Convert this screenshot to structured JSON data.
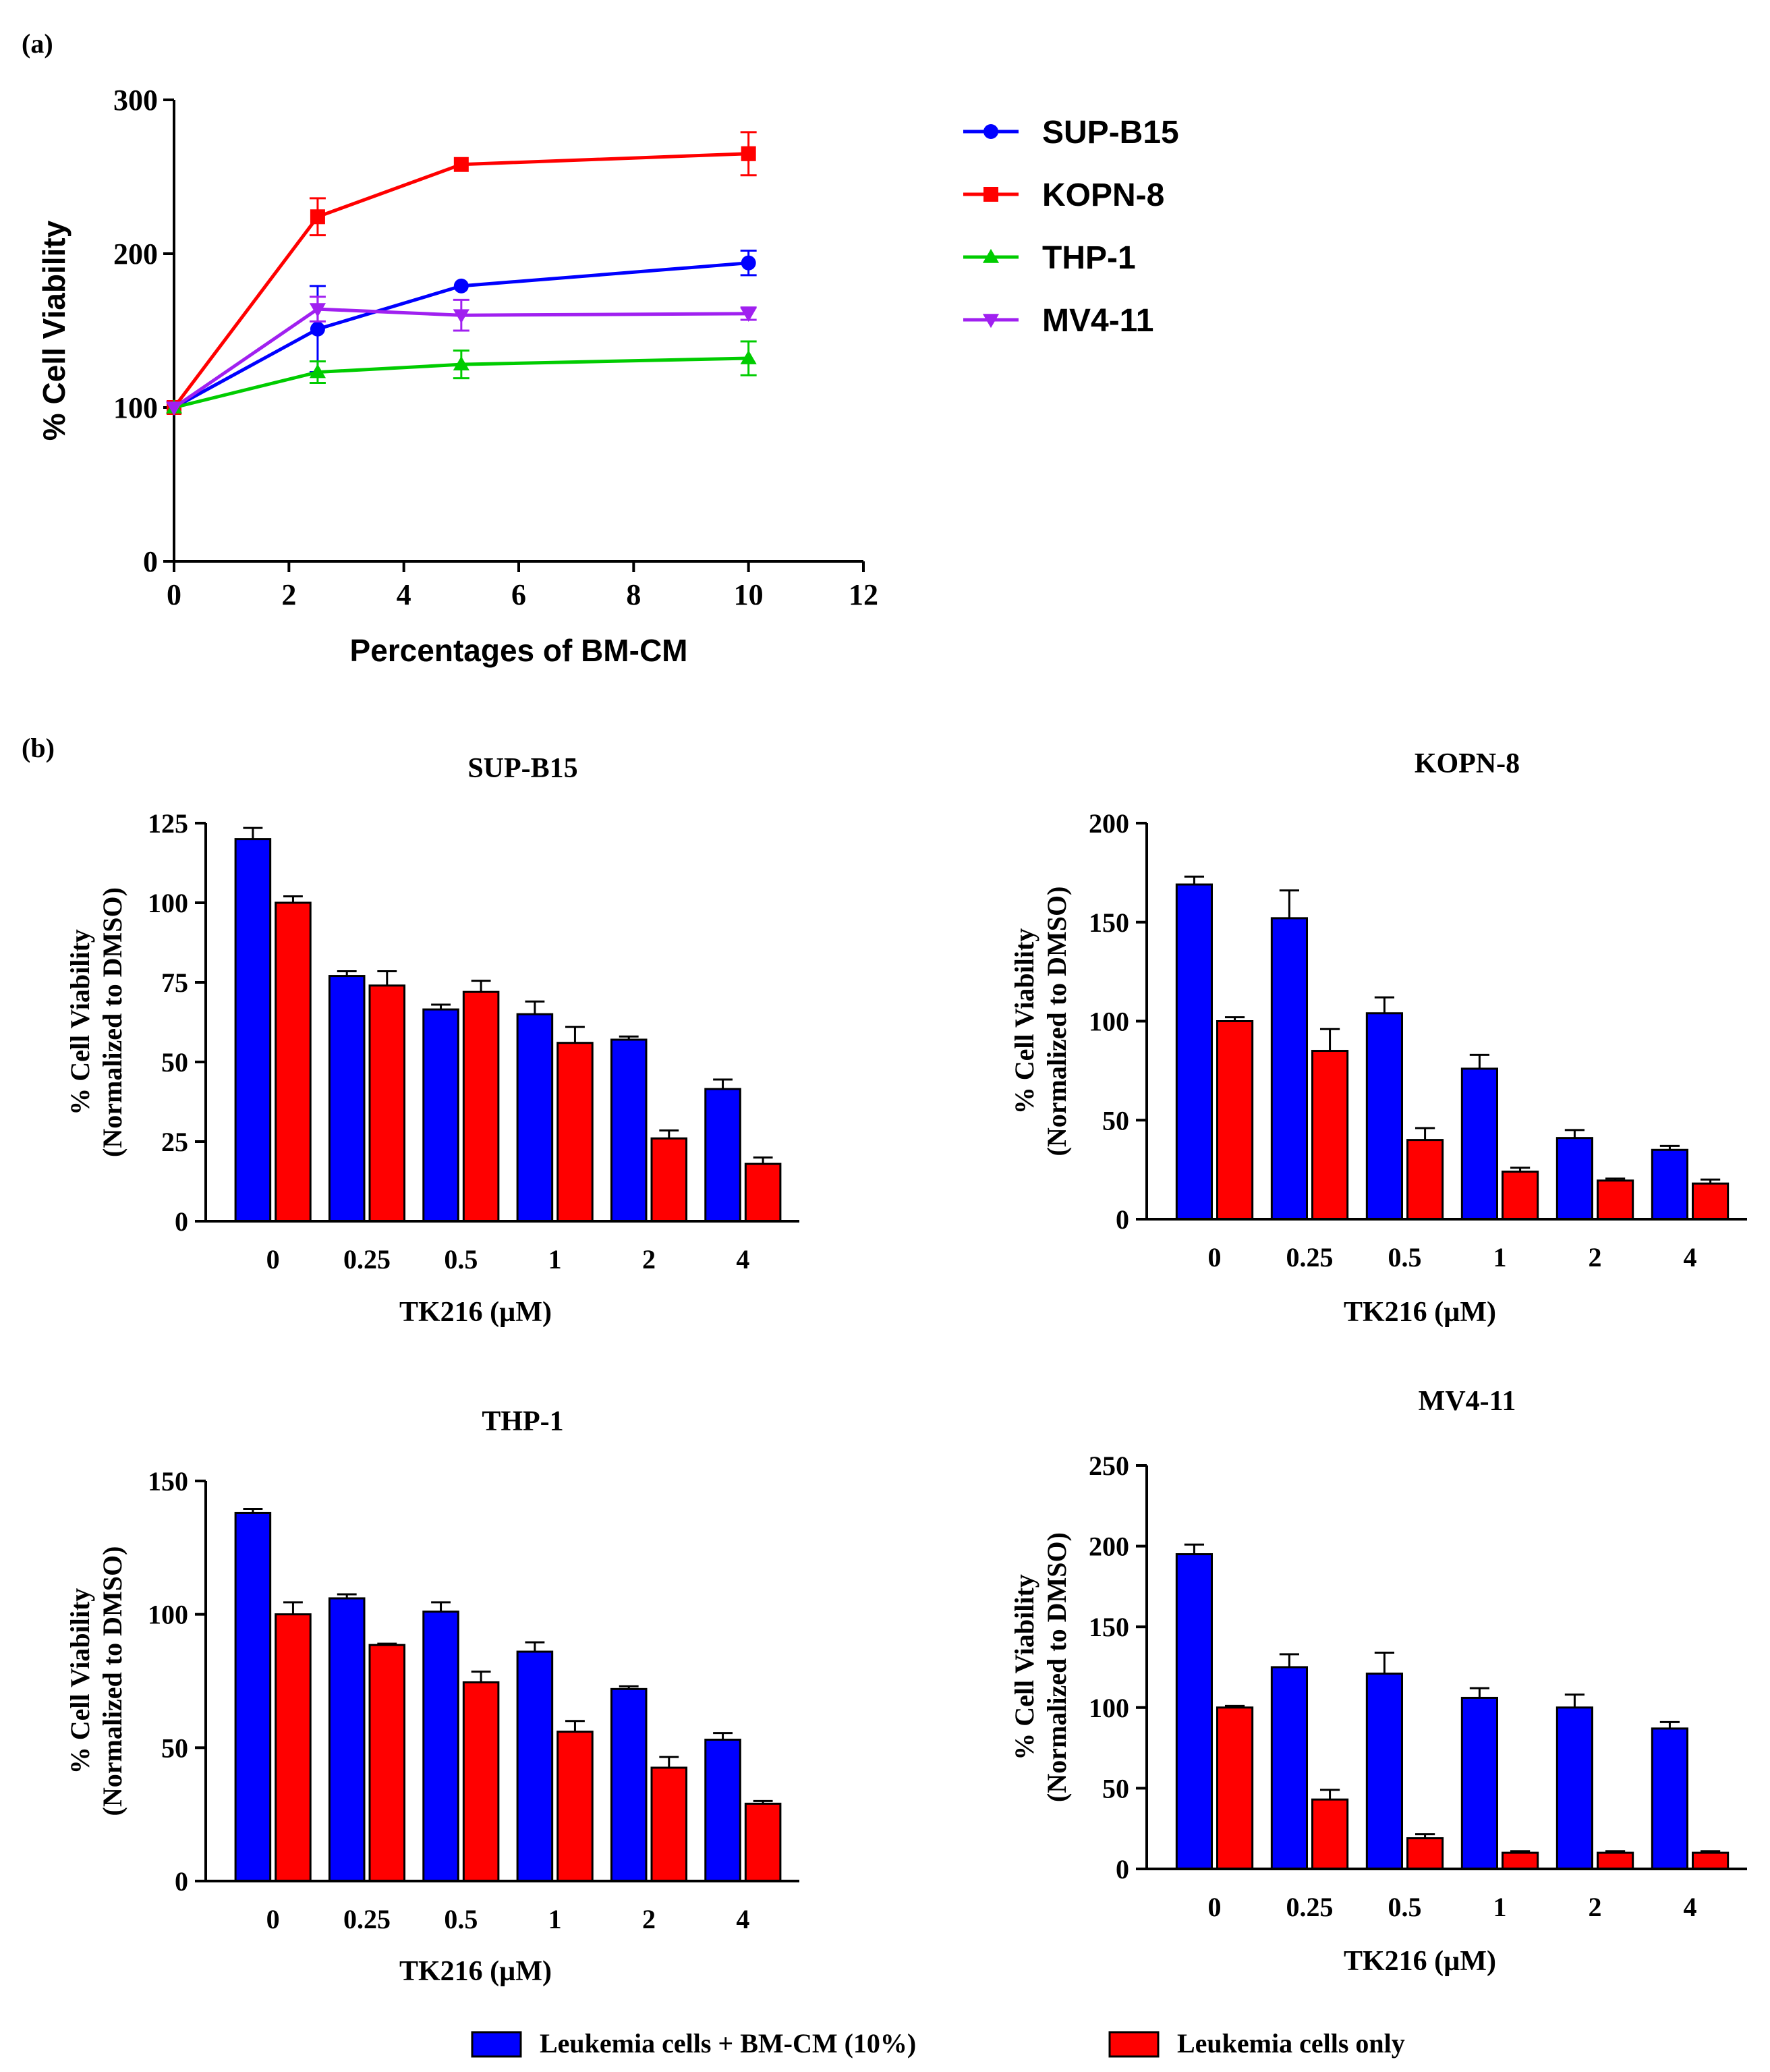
{
  "colors": {
    "blue": "#0000ff",
    "red": "#ff0000",
    "green": "#00cc00",
    "purple": "#a020f0",
    "axis": "#000000"
  },
  "panel_a": {
    "label": "(a)"
  },
  "panel_b": {
    "label": "(b)"
  },
  "legend_b": {
    "items": [
      {
        "name": "Leukemia cells + BM-CM (10%)",
        "color": "#0000ff"
      },
      {
        "name": "Leukemia cells only",
        "color": "#ff0000"
      }
    ]
  },
  "chart_data": [
    {
      "id": "a",
      "type": "line",
      "title": "",
      "xlabel": "Percentages of BM-CM",
      "ylabel": "% Cell Viability",
      "xlim": [
        0,
        12
      ],
      "ylim": [
        0,
        300
      ],
      "xticks": [
        0,
        2,
        4,
        6,
        8,
        10,
        12
      ],
      "yticks": [
        0,
        100,
        200,
        300
      ],
      "x": [
        0,
        2.5,
        5,
        10
      ],
      "legend_position": "right",
      "series": [
        {
          "name": "SUP-B15",
          "color": "#0000ff",
          "marker": "circle",
          "values": [
            100,
            151,
            179,
            194
          ],
          "errors": [
            0,
            28,
            0,
            8
          ]
        },
        {
          "name": "KOPN-8",
          "color": "#ff0000",
          "marker": "square",
          "values": [
            100,
            224,
            258,
            265
          ],
          "errors": [
            0,
            12,
            0,
            14
          ]
        },
        {
          "name": "THP-1",
          "color": "#00cc00",
          "marker": "triangle-up",
          "values": [
            100,
            123,
            128,
            132
          ],
          "errors": [
            0,
            7,
            9,
            11
          ]
        },
        {
          "name": "MV4-11",
          "color": "#a020f0",
          "marker": "triangle-down",
          "values": [
            100,
            164,
            160,
            161
          ],
          "errors": [
            0,
            8,
            10,
            4
          ]
        }
      ]
    },
    {
      "id": "b1",
      "type": "bar",
      "title": "SUP-B15",
      "xlabel": "TK216 (µM)",
      "ylabel": [
        "% Cell Viability",
        "(Normalized to DMSO)"
      ],
      "ylim": [
        0,
        125
      ],
      "yticks": [
        0,
        25,
        50,
        75,
        100,
        125
      ],
      "categories": [
        "0",
        "0.25",
        "0.5",
        "1",
        "2",
        "4"
      ],
      "series": [
        {
          "name": "Leukemia cells + BM-CM (10%)",
          "color": "#0000ff",
          "values": [
            120,
            77,
            66.5,
            65,
            57,
            41.5
          ],
          "errors": [
            3.5,
            1.5,
            1.5,
            4,
            1,
            3
          ]
        },
        {
          "name": "Leukemia cells only",
          "color": "#ff0000",
          "values": [
            100,
            74,
            72,
            56,
            26,
            18
          ],
          "errors": [
            2,
            4.5,
            3.5,
            5,
            2.5,
            2
          ]
        }
      ]
    },
    {
      "id": "b2",
      "type": "bar",
      "title": "KOPN-8",
      "xlabel": "TK216 (µM)",
      "ylabel": [
        "% Cell Viability",
        "(Normalized to DMSO)"
      ],
      "ylim": [
        0,
        200
      ],
      "yticks": [
        0,
        50,
        100,
        150,
        200
      ],
      "categories": [
        "0",
        "0.25",
        "0.5",
        "1",
        "2",
        "4"
      ],
      "series": [
        {
          "name": "Leukemia cells + BM-CM (10%)",
          "color": "#0000ff",
          "values": [
            169,
            152,
            104,
            76,
            41,
            35
          ],
          "errors": [
            4,
            14,
            8,
            7,
            4,
            2
          ]
        },
        {
          "name": "Leukemia cells only",
          "color": "#ff0000",
          "values": [
            100,
            85,
            40,
            24,
            19.5,
            18
          ],
          "errors": [
            2,
            11,
            6,
            2,
            1,
            2
          ]
        }
      ]
    },
    {
      "id": "b3",
      "type": "bar",
      "title": "THP-1",
      "xlabel": "TK216 (µM)",
      "ylabel": [
        "% Cell Viability",
        "(Normalized to DMSO)"
      ],
      "ylim": [
        0,
        150
      ],
      "yticks": [
        0,
        50,
        100,
        150
      ],
      "categories": [
        "0",
        "0.25",
        "0.5",
        "1",
        "2",
        "4"
      ],
      "series": [
        {
          "name": "Leukemia cells + BM-CM (10%)",
          "color": "#0000ff",
          "values": [
            138,
            106,
            101,
            86,
            72,
            53
          ],
          "errors": [
            1.5,
            1.5,
            3.5,
            3.5,
            1,
            2.5
          ]
        },
        {
          "name": "Leukemia cells only",
          "color": "#ff0000",
          "values": [
            100,
            88.5,
            74.5,
            56,
            42.5,
            29
          ],
          "errors": [
            4.5,
            0.5,
            4,
            4,
            4,
            1
          ]
        }
      ]
    },
    {
      "id": "b4",
      "type": "bar",
      "title": "MV4-11",
      "xlabel": "TK216 (µM)",
      "ylabel": [
        "% Cell Viability",
        "(Normalized to DMSO)"
      ],
      "ylim": [
        0,
        250
      ],
      "yticks": [
        0,
        50,
        100,
        150,
        200,
        250
      ],
      "categories": [
        "0",
        "0.25",
        "0.5",
        "1",
        "2",
        "4"
      ],
      "series": [
        {
          "name": "Leukemia cells + BM-CM (10%)",
          "color": "#0000ff",
          "values": [
            195,
            125,
            121,
            106,
            100,
            87
          ],
          "errors": [
            6,
            8,
            13,
            6,
            8,
            4
          ]
        },
        {
          "name": "Leukemia cells only",
          "color": "#ff0000",
          "values": [
            100,
            43,
            19,
            10,
            10,
            10
          ],
          "errors": [
            1,
            6,
            2.5,
            1,
            1,
            1
          ]
        }
      ]
    }
  ]
}
